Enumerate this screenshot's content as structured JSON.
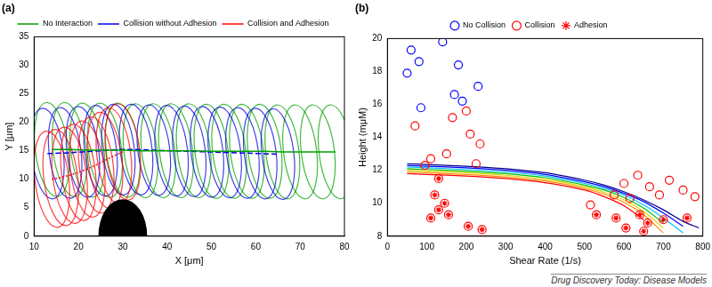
{
  "chart_data": [
    {
      "type": "line",
      "title": "(a)",
      "x_label": "X [μm]",
      "y_label": "Y [μm]",
      "xlim": [
        10,
        80
      ],
      "xticks": [
        10,
        20,
        30,
        40,
        50,
        60,
        70,
        80
      ],
      "ylim": [
        0,
        35
      ],
      "yticks": [
        0,
        5,
        10,
        15,
        20,
        25,
        30,
        35
      ],
      "grid": false,
      "legend": "top",
      "obstacle": {
        "center": 30,
        "half_width": 5.5,
        "height": 6.5
      },
      "series": [
        {
          "name": "No Interaction",
          "color": "#00a000",
          "line_style": "solid",
          "radius": 8.3,
          "x": [
            14,
            18,
            22,
            26,
            30,
            34,
            38,
            42,
            46,
            50,
            54,
            58,
            62,
            66,
            70,
            74,
            78
          ],
          "y": [
            15.2,
            15.2,
            15.1,
            15.1,
            15.1,
            15.0,
            15.0,
            15.0,
            15.0,
            14.9,
            14.9,
            14.9,
            14.9,
            14.8,
            14.8,
            14.8,
            14.8
          ]
        },
        {
          "name": "Collision without Adhesion",
          "color": "#0000e0",
          "line_style": "dashed",
          "radius": 8.0,
          "x": [
            13,
            17,
            21,
            25,
            29,
            33,
            37,
            41,
            45,
            49,
            53,
            57,
            61,
            65
          ],
          "y": [
            14.5,
            14.6,
            14.8,
            15.0,
            15.2,
            15.2,
            15.1,
            15.0,
            14.9,
            14.8,
            14.7,
            14.6,
            14.5,
            14.4
          ]
        },
        {
          "name": "Collision and Adhesion",
          "color": "#ff0000",
          "line_style": "dotted",
          "radius": 8.5,
          "x": [
            14,
            16,
            18,
            20,
            22,
            24,
            26,
            28,
            30
          ],
          "y": [
            10.0,
            10.3,
            10.7,
            11.2,
            11.8,
            12.5,
            13.3,
            14.1,
            14.8
          ]
        }
      ]
    },
    {
      "type": "scatter",
      "title": "(b)",
      "x_label": "Shear Rate (1/s)",
      "y_label": "Height (mμM)",
      "xlim": [
        0,
        800
      ],
      "xticks": [
        0,
        100,
        200,
        300,
        400,
        500,
        600,
        700,
        800
      ],
      "ylim": [
        8,
        20
      ],
      "yticks": [
        8,
        10,
        12,
        14,
        16,
        18,
        20
      ],
      "grid": false,
      "legend": "top",
      "series": [
        {
          "name": "No Collision",
          "color": "#0000ff",
          "marker": "circle",
          "x": [
            50,
            60,
            80,
            85,
            140,
            170,
            180,
            190,
            230
          ],
          "values": [
            17.9,
            19.3,
            18.6,
            15.8,
            19.8,
            16.6,
            18.4,
            16.2,
            17.1
          ]
        },
        {
          "name": "Collision",
          "color": "#ff0000",
          "marker": "circle",
          "x": [
            70,
            95,
            110,
            110,
            120,
            130,
            130,
            145,
            150,
            155,
            165,
            200,
            205,
            210,
            225,
            235,
            240,
            515,
            530,
            575,
            580,
            600,
            605,
            615,
            640,
            635,
            650,
            660,
            665,
            700,
            715,
            690,
            750,
            760,
            780
          ],
          "values": [
            14.7,
            12.3,
            12.7,
            9.1,
            10.5,
            9.6,
            11.5,
            10.0,
            13.0,
            9.3,
            15.2,
            15.6,
            8.6,
            14.2,
            12.4,
            13.6,
            8.4,
            9.9,
            9.3,
            10.5,
            9.1,
            11.2,
            8.5,
            10.3,
            9.3,
            11.7,
            8.3,
            8.8,
            11.0,
            9.0,
            11.4,
            10.5,
            10.8,
            9.1,
            10.4
          ]
        },
        {
          "name": "Adhesion",
          "color": "#ff0000",
          "marker": "star",
          "x": [
            110,
            120,
            130,
            130,
            145,
            155,
            205,
            240,
            530,
            580,
            605,
            640,
            650,
            660,
            700,
            760
          ],
          "values": [
            9.1,
            10.5,
            9.6,
            11.5,
            10.0,
            9.3,
            8.6,
            8.4,
            9.3,
            9.1,
            8.5,
            9.3,
            8.3,
            8.8,
            9.0,
            9.1
          ]
        },
        {
          "type": "line",
          "color": "#00008b",
          "line_style": "solid",
          "x": [
            50,
            100,
            200,
            300,
            400,
            500,
            550,
            600,
            650,
            700,
            750,
            790
          ],
          "values": [
            12.4,
            12.35,
            12.25,
            12.1,
            11.85,
            11.4,
            11.1,
            10.7,
            10.2,
            9.6,
            8.9,
            8.5
          ]
        },
        {
          "type": "line",
          "color": "#0000ff",
          "line_style": "solid",
          "x": [
            50,
            100,
            200,
            300,
            400,
            500,
            550,
            600,
            650,
            700,
            750,
            790
          ],
          "values": [
            12.3,
            12.25,
            12.15,
            12.0,
            11.75,
            11.3,
            11.0,
            10.6,
            10.1,
            9.4,
            8.6,
            null
          ]
        },
        {
          "type": "line",
          "color": "#00bfff",
          "line_style": "solid",
          "x": [
            50,
            100,
            200,
            300,
            400,
            500,
            550,
            600,
            650,
            700,
            750,
            790
          ],
          "values": [
            12.2,
            12.15,
            12.05,
            11.9,
            11.65,
            11.2,
            10.9,
            10.5,
            9.9,
            9.1,
            8.2,
            null
          ]
        },
        {
          "type": "line",
          "color": "#00c000",
          "line_style": "solid",
          "x": [
            50,
            100,
            200,
            300,
            400,
            500,
            550,
            600,
            650,
            700,
            750,
            790
          ],
          "values": [
            12.1,
            12.05,
            11.95,
            11.8,
            11.55,
            11.1,
            10.8,
            10.35,
            9.7,
            8.8,
            null,
            null
          ]
        },
        {
          "type": "line",
          "color": "#e0d000",
          "line_style": "solid",
          "x": [
            50,
            100,
            200,
            300,
            400,
            500,
            550,
            600,
            650,
            700,
            750,
            790
          ],
          "values": [
            12.0,
            11.95,
            11.85,
            11.7,
            11.45,
            11.0,
            10.65,
            10.2,
            9.5,
            8.5,
            null,
            null
          ]
        },
        {
          "type": "line",
          "color": "#ff8c00",
          "line_style": "solid",
          "x": [
            50,
            100,
            200,
            300,
            400,
            500,
            550,
            600,
            650,
            700,
            750,
            790
          ],
          "values": [
            11.9,
            11.85,
            11.75,
            11.6,
            11.35,
            10.9,
            10.55,
            10.05,
            9.3,
            8.2,
            null,
            null
          ]
        },
        {
          "type": "line",
          "color": "#ff0000",
          "line_style": "solid",
          "x": [
            50,
            100,
            200,
            300,
            400,
            500,
            550,
            600,
            650,
            700,
            750,
            790
          ],
          "values": [
            11.8,
            11.75,
            11.65,
            11.5,
            11.25,
            10.8,
            10.4,
            9.85,
            9.0,
            null,
            null,
            null
          ]
        }
      ]
    }
  ],
  "source": "Drug Discovery Today: Disease Models"
}
